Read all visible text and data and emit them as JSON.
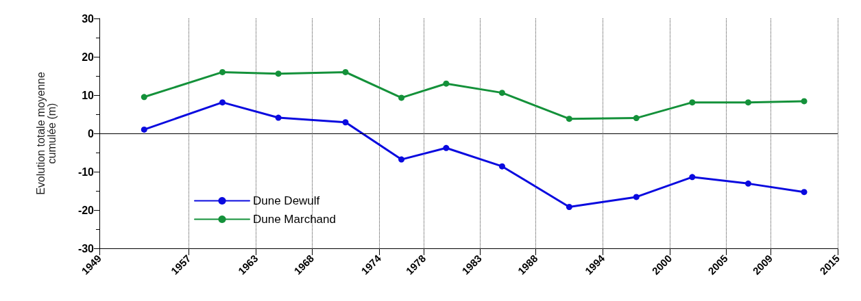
{
  "chart_data": {
    "type": "line",
    "ylabel": "Evolution totale moyenne\ncumulée (m)",
    "x": [
      1953,
      1960,
      1965,
      1971,
      1976,
      1980,
      1985,
      1991,
      1997,
      2002,
      2007,
      2012
    ],
    "series": [
      {
        "name": "Dune Dewulf",
        "color": "#0a0adf",
        "values": [
          1,
          8.1,
          4.1,
          2.9,
          -6.8,
          -3.8,
          -8.6,
          -19.2,
          -16.6,
          -11.4,
          -13.1,
          -15.3
        ]
      },
      {
        "name": "Dune Marchand",
        "color": "#14913a",
        "values": [
          9.5,
          16,
          15.6,
          16,
          9.3,
          13,
          10.6,
          3.8,
          4,
          8.1,
          8.1,
          8.4
        ]
      }
    ],
    "xlim": [
      1949,
      2015
    ],
    "xticks": [
      1949,
      1957,
      1963,
      1968,
      1974,
      1978,
      1983,
      1988,
      1994,
      2000,
      2005,
      2009,
      2015
    ],
    "ylim": [
      -30,
      30
    ],
    "yticks": [
      -30,
      -20,
      -10,
      0,
      10,
      20,
      30
    ],
    "ref_lines": [
      {
        "axis": "y",
        "value": 0,
        "color": "#000000"
      }
    ],
    "grid": "x",
    "legend": "bottom left",
    "marker": "circle",
    "line_style": "solid"
  }
}
